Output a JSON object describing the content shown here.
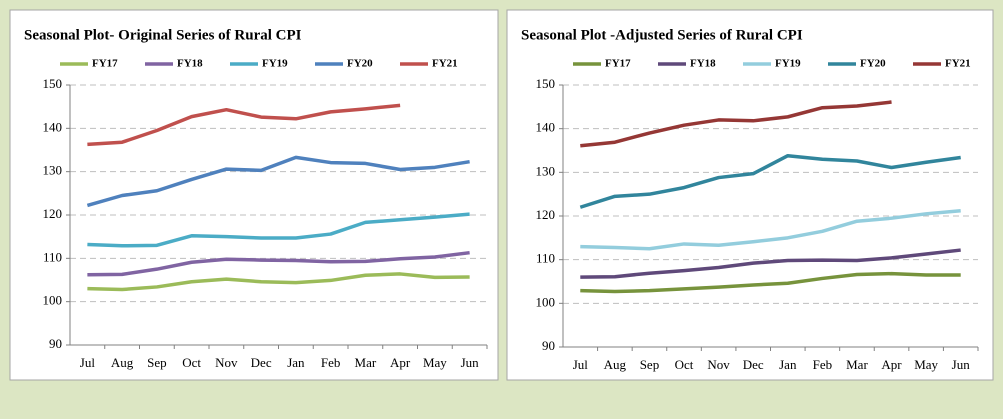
{
  "chart_data": [
    {
      "type": "line",
      "title": "Seasonal Plot- Original Series of Rural CPI",
      "categories": [
        "Jul",
        "Aug",
        "Sep",
        "Oct",
        "Nov",
        "Dec",
        "Jan",
        "Feb",
        "Mar",
        "Apr",
        "May",
        "Jun"
      ],
      "ylim": [
        90,
        150
      ],
      "yticks": [
        90,
        100,
        110,
        120,
        130,
        140,
        150
      ],
      "grid": true,
      "series": [
        {
          "name": "FY17",
          "color": "#9bbb59",
          "values": [
            103,
            102.8,
            103.4,
            104.6,
            105.2,
            104.6,
            104.4,
            104.9,
            106.1,
            106.4,
            105.6,
            105.7
          ]
        },
        {
          "name": "FY18",
          "color": "#8064a2",
          "values": [
            106.2,
            106.3,
            107.5,
            109.1,
            109.8,
            109.6,
            109.5,
            109.2,
            109.3,
            109.9,
            110.3,
            111.3
          ]
        },
        {
          "name": "FY19",
          "color": "#4bacc6",
          "values": [
            113.2,
            112.9,
            113,
            115.2,
            115,
            114.7,
            114.7,
            115.6,
            118.3,
            118.9,
            119.5,
            120.2
          ]
        },
        {
          "name": "FY20",
          "color": "#4f81bd",
          "values": [
            122.2,
            124.5,
            125.6,
            128.2,
            130.6,
            130.3,
            133.3,
            132.1,
            131.9,
            130.5,
            131,
            132.3
          ]
        },
        {
          "name": "FY21",
          "color": "#c0504d",
          "values": [
            136.3,
            136.8,
            139.5,
            142.7,
            144.3,
            142.6,
            142.2,
            143.8,
            144.5,
            145.3,
            null,
            null
          ]
        }
      ]
    },
    {
      "type": "line",
      "title": "Seasonal Plot -Adjusted Series of Rural CPI",
      "categories": [
        "Jul",
        "Aug",
        "Sep",
        "Oct",
        "Nov",
        "Dec",
        "Jan",
        "Feb",
        "Mar",
        "Apr",
        "May",
        "Jun"
      ],
      "ylim": [
        90,
        150
      ],
      "yticks": [
        90,
        100,
        110,
        120,
        130,
        140,
        150
      ],
      "grid": true,
      "series": [
        {
          "name": "FY17",
          "color": "#77933c",
          "values": [
            102.9,
            102.7,
            102.9,
            103.3,
            103.7,
            104.2,
            104.6,
            105.7,
            106.6,
            106.8,
            106.5,
            106.5
          ]
        },
        {
          "name": "FY18",
          "color": "#5f497a",
          "values": [
            106,
            106.1,
            106.9,
            107.5,
            108.2,
            109.2,
            109.8,
            109.9,
            109.8,
            110.4,
            111.3,
            112.2
          ]
        },
        {
          "name": "FY19",
          "color": "#93cddd",
          "values": [
            113,
            112.8,
            112.5,
            113.6,
            113.3,
            114.1,
            115,
            116.5,
            118.8,
            119.5,
            120.5,
            121.2
          ]
        },
        {
          "name": "FY20",
          "color": "#31859c",
          "values": [
            122,
            124.5,
            125,
            126.5,
            128.8,
            129.7,
            133.8,
            133,
            132.6,
            131.1,
            132.3,
            133.4
          ]
        },
        {
          "name": "FY21",
          "color": "#953735",
          "values": [
            136.1,
            136.9,
            139,
            140.8,
            142,
            141.8,
            142.7,
            144.8,
            145.2,
            146.1,
            null,
            null
          ]
        }
      ]
    }
  ]
}
